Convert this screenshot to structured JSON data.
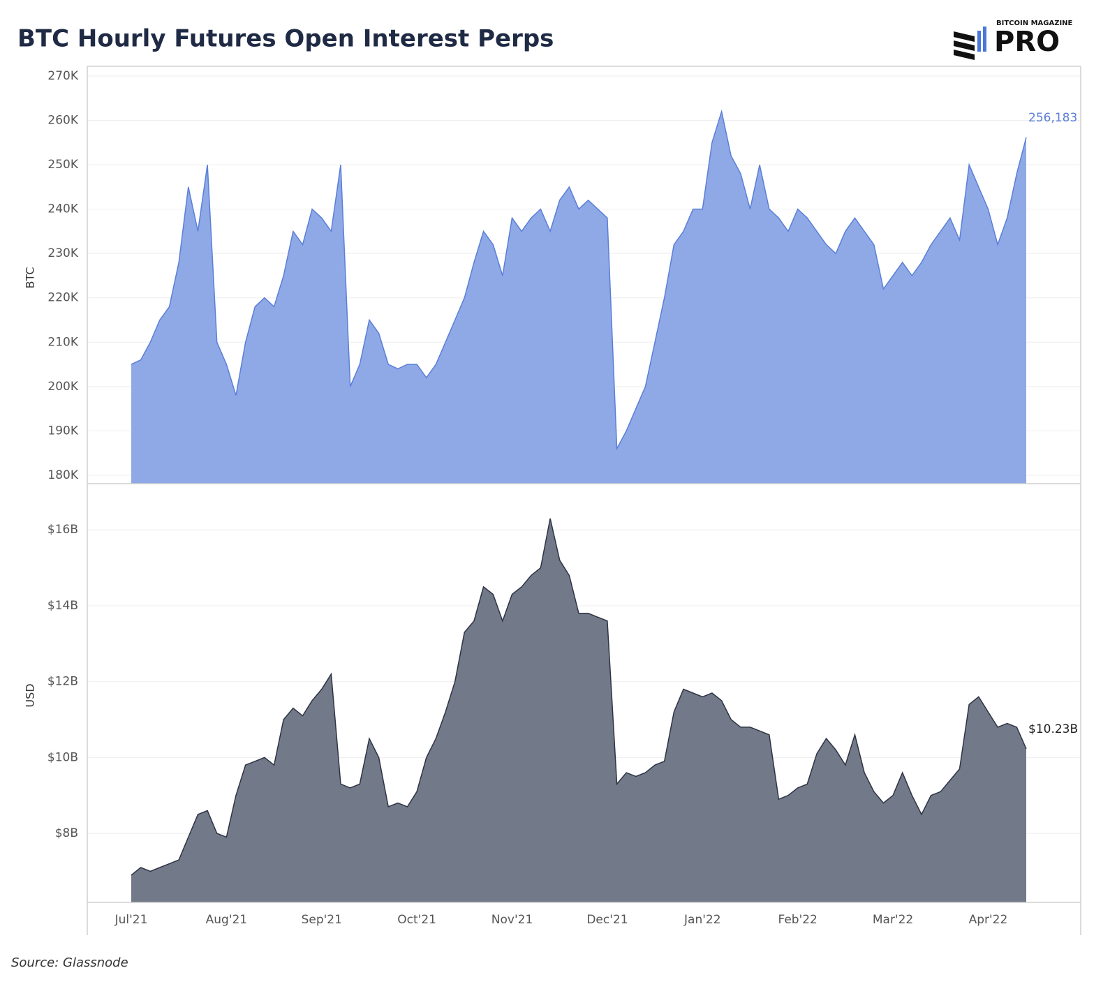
{
  "chart_data": {
    "type": "area",
    "title": "BTC Hourly Futures Open Interest Perps",
    "brand": {
      "top": "BITCOIN MAGAZINE",
      "main": "PRO"
    },
    "source": "Source: Glassnode",
    "categories": [
      "Jul'21",
      null,
      null,
      null,
      null,
      null,
      null,
      null,
      null,
      null,
      "Aug'21",
      null,
      null,
      null,
      null,
      null,
      null,
      null,
      null,
      null,
      "Sep'21",
      null,
      null,
      null,
      null,
      null,
      null,
      null,
      null,
      null,
      "Oct'21",
      null,
      null,
      null,
      null,
      null,
      null,
      null,
      null,
      null,
      "Nov'21",
      null,
      null,
      null,
      null,
      null,
      null,
      null,
      null,
      null,
      "Dec'21",
      null,
      null,
      null,
      null,
      null,
      null,
      null,
      null,
      null,
      "Jan'22",
      null,
      null,
      null,
      null,
      null,
      null,
      null,
      null,
      null,
      "Feb'22",
      null,
      null,
      null,
      null,
      null,
      null,
      null,
      null,
      null,
      "Mar'22",
      null,
      null,
      null,
      null,
      null,
      null,
      null,
      null,
      null,
      "Apr'22",
      null,
      null,
      null,
      null
    ],
    "series": [
      {
        "name": "BTC",
        "color": "#8ea9e6",
        "line_color": "#5b7fd8",
        "ylim": [
          178100,
          272200
        ],
        "yticks": [
          {
            "value": 180000,
            "label": "180K"
          },
          {
            "value": 190000,
            "label": "190K"
          },
          {
            "value": 200000,
            "label": "200K"
          },
          {
            "value": 210000,
            "label": "210K"
          },
          {
            "value": 220000,
            "label": "220K"
          },
          {
            "value": 230000,
            "label": "230K"
          },
          {
            "value": 240000,
            "label": "240K"
          },
          {
            "value": 250000,
            "label": "250K"
          },
          {
            "value": 260000,
            "label": "260K"
          },
          {
            "value": 270000,
            "label": "270K"
          }
        ],
        "values": [
          205000,
          206000,
          210000,
          215000,
          218000,
          228000,
          245000,
          235000,
          250000,
          210000,
          205000,
          198000,
          210000,
          218000,
          220000,
          218000,
          225000,
          235000,
          232000,
          240000,
          238000,
          235000,
          250000,
          200000,
          205000,
          215000,
          212000,
          205000,
          204000,
          205000,
          205000,
          202000,
          205000,
          210000,
          215000,
          220000,
          228000,
          235000,
          232000,
          225000,
          238000,
          235000,
          238000,
          240000,
          235000,
          242000,
          245000,
          240000,
          242000,
          240000,
          238000,
          186000,
          190000,
          195000,
          200000,
          210000,
          220000,
          232000,
          235000,
          240000,
          240000,
          255000,
          262000,
          252000,
          248000,
          240000,
          250000,
          240000,
          238000,
          235000,
          240000,
          238000,
          235000,
          232000,
          230000,
          235000,
          238000,
          235000,
          232000,
          222000,
          225000,
          228000,
          225000,
          228000,
          232000,
          235000,
          238000,
          233000,
          250000,
          245000,
          240000,
          232000,
          238000,
          248000,
          256183
        ],
        "value_labels": [
          null,
          null,
          null,
          null,
          null,
          null,
          null,
          null,
          null,
          null,
          null,
          null,
          null,
          null,
          null,
          null,
          null,
          null,
          null,
          null,
          null,
          null,
          null,
          null,
          null,
          null,
          null,
          null,
          null,
          null,
          null,
          null,
          null,
          null,
          null,
          null,
          null,
          null,
          null,
          null,
          null,
          null,
          null,
          null,
          null,
          null,
          null,
          null,
          null,
          null,
          null,
          null,
          null,
          null,
          null,
          null,
          null,
          null,
          null,
          null,
          null,
          null,
          null,
          null,
          null,
          null,
          null,
          null,
          null,
          null,
          null,
          null,
          null,
          null,
          null,
          null,
          null,
          null,
          null,
          null,
          null,
          null,
          null,
          null,
          null,
          null,
          null,
          null,
          null,
          null,
          null,
          null,
          null,
          null,
          "256,183"
        ]
      },
      {
        "name": "USD",
        "color": "#727988",
        "line_color": "#2e3444",
        "ylim": [
          6180000000,
          17090000000
        ],
        "yticks": [
          {
            "value": 8000000000,
            "label": "$8B"
          },
          {
            "value": 10000000000,
            "label": "$10B"
          },
          {
            "value": 12000000000,
            "label": "$12B"
          },
          {
            "value": 14000000000,
            "label": "$14B"
          },
          {
            "value": 16000000000,
            "label": "$16B"
          }
        ],
        "values": [
          6900000000,
          7100000000,
          7000000000,
          7100000000,
          7200000000,
          7300000000,
          7900000000,
          8500000000,
          8600000000,
          8000000000,
          7900000000,
          9000000000,
          9800000000,
          9900000000,
          10000000000,
          9800000000,
          11000000000,
          11300000000,
          11100000000,
          11500000000,
          11800000000,
          12200000000,
          9300000000,
          9200000000,
          9300000000,
          10500000000,
          10000000000,
          8700000000,
          8800000000,
          8700000000,
          9100000000,
          10000000000,
          10500000000,
          11200000000,
          12000000000,
          13300000000,
          13600000000,
          14500000000,
          14300000000,
          13600000000,
          14300000000,
          14500000000,
          14800000000,
          15000000000,
          16300000000,
          15200000000,
          14800000000,
          13800000000,
          13800000000,
          13700000000,
          13600000000,
          9300000000,
          9600000000,
          9500000000,
          9600000000,
          9800000000,
          9900000000,
          11200000000,
          11800000000,
          11700000000,
          11600000000,
          11700000000,
          11500000000,
          11000000000,
          10800000000,
          10800000000,
          10700000000,
          10600000000,
          8900000000,
          9000000000,
          9200000000,
          9300000000,
          10100000000,
          10500000000,
          10200000000,
          9800000000,
          10600000000,
          9600000000,
          9100000000,
          8800000000,
          9000000000,
          9600000000,
          9000000000,
          8500000000,
          9000000000,
          9100000000,
          9400000000,
          9700000000,
          11400000000,
          11600000000,
          11200000000,
          10800000000,
          10900000000,
          10800000000,
          10230000000
        ],
        "value_labels": [
          null,
          null,
          null,
          null,
          null,
          null,
          null,
          null,
          null,
          null,
          null,
          null,
          null,
          null,
          null,
          null,
          null,
          null,
          null,
          null,
          null,
          null,
          null,
          null,
          null,
          null,
          null,
          null,
          null,
          null,
          null,
          null,
          null,
          null,
          null,
          null,
          null,
          null,
          null,
          null,
          null,
          null,
          null,
          null,
          null,
          null,
          null,
          null,
          null,
          null,
          null,
          null,
          null,
          null,
          null,
          null,
          null,
          null,
          null,
          null,
          null,
          null,
          null,
          null,
          null,
          null,
          null,
          null,
          null,
          null,
          null,
          null,
          null,
          null,
          null,
          null,
          null,
          null,
          null,
          null,
          null,
          null,
          null,
          null,
          null,
          null,
          null,
          null,
          null,
          null,
          null,
          null,
          null,
          null,
          "$10.23B"
        ]
      }
    ],
    "grid": true
  }
}
